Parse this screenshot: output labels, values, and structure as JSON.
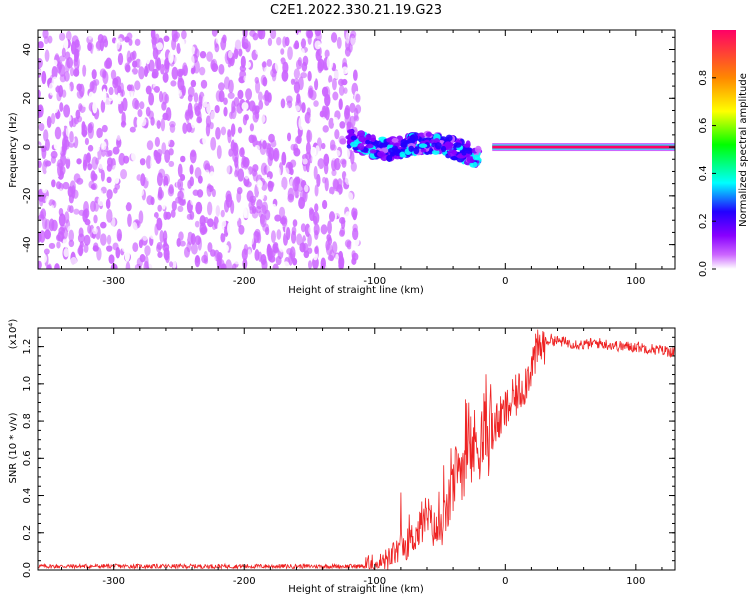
{
  "title": "C2E1.2022.330.21.19.G23",
  "chart_data": [
    {
      "type": "heatmap",
      "xlabel": "Height of straight line (km)",
      "ylabel": "Frequency (Hz)",
      "xlim": [
        -358,
        130
      ],
      "ylim": [
        -50,
        48
      ],
      "xticks": [
        -300,
        -200,
        -100,
        0,
        100
      ],
      "xtick_labels": [
        "-300",
        "-200",
        "-100",
        "0",
        "100"
      ],
      "yticks": [
        -40,
        -20,
        0,
        20,
        40
      ],
      "ytick_labels": [
        "-40",
        "-20",
        "0",
        "20",
        "40"
      ],
      "colorbar": {
        "label": "Normalized spectral amplitude",
        "range": [
          0,
          1
        ],
        "ticks": [
          0.0,
          0.2,
          0.4,
          0.6,
          0.8
        ],
        "tick_labels": [
          "0.0",
          "0.2",
          "0.4",
          "0.6",
          "0.8"
        ],
        "colors": [
          "#ffffff",
          "#cc66ff",
          "#8800ff",
          "#2200ff",
          "#00ffff",
          "#00ff00",
          "#ffff00",
          "#ff8800",
          "#ff0066"
        ]
      },
      "description_regions": [
        {
          "x_range": [
            -358,
            -110
          ],
          "y_range": [
            -50,
            48
          ],
          "level": 0.08,
          "pattern": "scattered noise"
        },
        {
          "x_range": [
            -120,
            -20
          ],
          "y_range": [
            -12,
            12
          ],
          "level": 0.35,
          "pattern": "wavy band"
        },
        {
          "x_range": [
            -10,
            130
          ],
          "y_range": [
            -1,
            1
          ],
          "level": 0.95,
          "pattern": "constant carrier line"
        }
      ]
    },
    {
      "type": "line",
      "xlabel": "Height of straight line (km)",
      "ylabel": "SNR (10 * v/v)",
      "y_multiplier": "(x10⁴)",
      "xlim": [
        -358,
        130
      ],
      "ylim": [
        0,
        1.3
      ],
      "xticks": [
        -300,
        -200,
        -100,
        0,
        100
      ],
      "xtick_labels": [
        "-300",
        "-200",
        "-100",
        "0",
        "100"
      ],
      "yticks": [
        0.0,
        0.2,
        0.4,
        0.6,
        0.8,
        1.0,
        1.2
      ],
      "ytick_labels": [
        "0.0",
        "0.2",
        "0.4",
        "0.6",
        "0.8",
        "1.0",
        "1.2"
      ],
      "series": [
        {
          "color": "#ee2222",
          "x": [
            -358,
            -340,
            -320,
            -300,
            -280,
            -260,
            -240,
            -220,
            -200,
            -180,
            -160,
            -140,
            -120,
            -110,
            -100,
            -95,
            -90,
            -85,
            -80,
            -75,
            -70,
            -65,
            -60,
            -55,
            -50,
            -45,
            -40,
            -35,
            -30,
            -25,
            -20,
            -15,
            -10,
            -5,
            0,
            5,
            10,
            15,
            20,
            25,
            30,
            35,
            40,
            50,
            60,
            70,
            80,
            90,
            100,
            110,
            120,
            130
          ],
          "values": [
            0.02,
            0.02,
            0.02,
            0.02,
            0.02,
            0.02,
            0.02,
            0.02,
            0.02,
            0.02,
            0.02,
            0.02,
            0.02,
            0.02,
            0.03,
            0.04,
            0.06,
            0.09,
            0.12,
            0.14,
            0.18,
            0.22,
            0.3,
            0.22,
            0.2,
            0.3,
            0.45,
            0.55,
            0.6,
            0.65,
            0.7,
            0.72,
            0.75,
            0.8,
            0.85,
            0.9,
            0.95,
            1.0,
            1.1,
            1.18,
            1.22,
            1.24,
            1.23,
            1.22,
            1.21,
            1.22,
            1.21,
            1.2,
            1.2,
            1.19,
            1.18,
            1.17
          ]
        }
      ]
    }
  ]
}
